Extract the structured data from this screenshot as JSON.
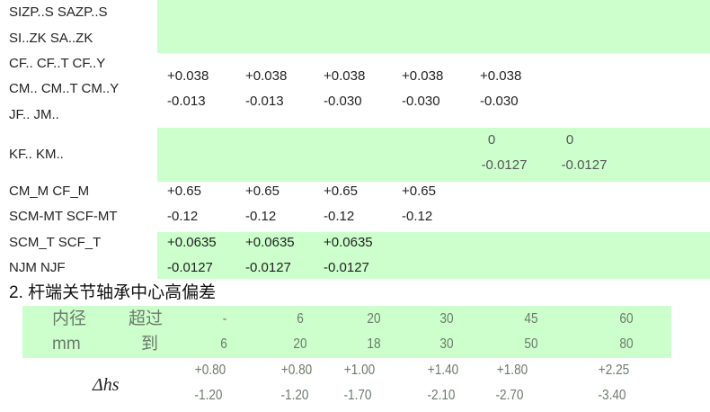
{
  "table1": {
    "rows": [
      {
        "labels": [
          "SIZP..S SAZP..S",
          "SI..ZK    SA..ZK"
        ],
        "values": []
      },
      {
        "labels": [
          "CF.. CF..T CF..Y",
          "CM..  CM..T CM..Y",
          "JF.. JM.."
        ],
        "values": [
          [
            "+0.038",
            "-0.013"
          ],
          [
            "+0.038",
            "-0.013"
          ],
          [
            "+0.038",
            "-0.030"
          ],
          [
            "+0.038",
            "-0.030"
          ],
          [
            "+0.038",
            "-0.030"
          ]
        ]
      },
      {
        "labels": [
          "KF.. KM.."
        ],
        "values": [
          [
            "0",
            "-0.0127"
          ],
          [
            "0",
            "-0.0127"
          ]
        ]
      },
      {
        "labels": [
          "CM_M      CF_M",
          "SCM-MT SCF-MT"
        ],
        "values": [
          [
            "+0.65",
            "-0.12"
          ],
          [
            "+0.65",
            "-0.12"
          ],
          [
            "+0.65",
            "-0.12"
          ],
          [
            "+0.65",
            "-0.12"
          ]
        ]
      },
      {
        "labels": [
          "SCM_T    SCF_T",
          "NJM         NJF"
        ],
        "values": [
          [
            "+0.0635",
            "-0.0127"
          ],
          [
            "+0.0635",
            "-0.0127"
          ],
          [
            "+0.0635",
            "-0.0127"
          ]
        ]
      }
    ]
  },
  "heading": "2.   杆端关节轴承中心高偏差",
  "table2": {
    "label_inner_dia": "内径",
    "label_unit": "mm",
    "label_over": "超过",
    "label_to": "到",
    "over": [
      "-",
      "6",
      "20",
      "30",
      "45",
      "60"
    ],
    "to": [
      "6",
      "20",
      "18",
      "30",
      "50",
      "80"
    ],
    "delta_label": "Δhs",
    "upper": [
      "+0.80",
      "+0.80",
      "+1.00",
      "+1.40",
      "+1.80",
      "+2.25"
    ],
    "lower": [
      "-1.20",
      "-1.20",
      "-1.70",
      "-2.10",
      "-2.70",
      "-3.40"
    ]
  },
  "colors": {
    "band": "#ccffcc"
  }
}
